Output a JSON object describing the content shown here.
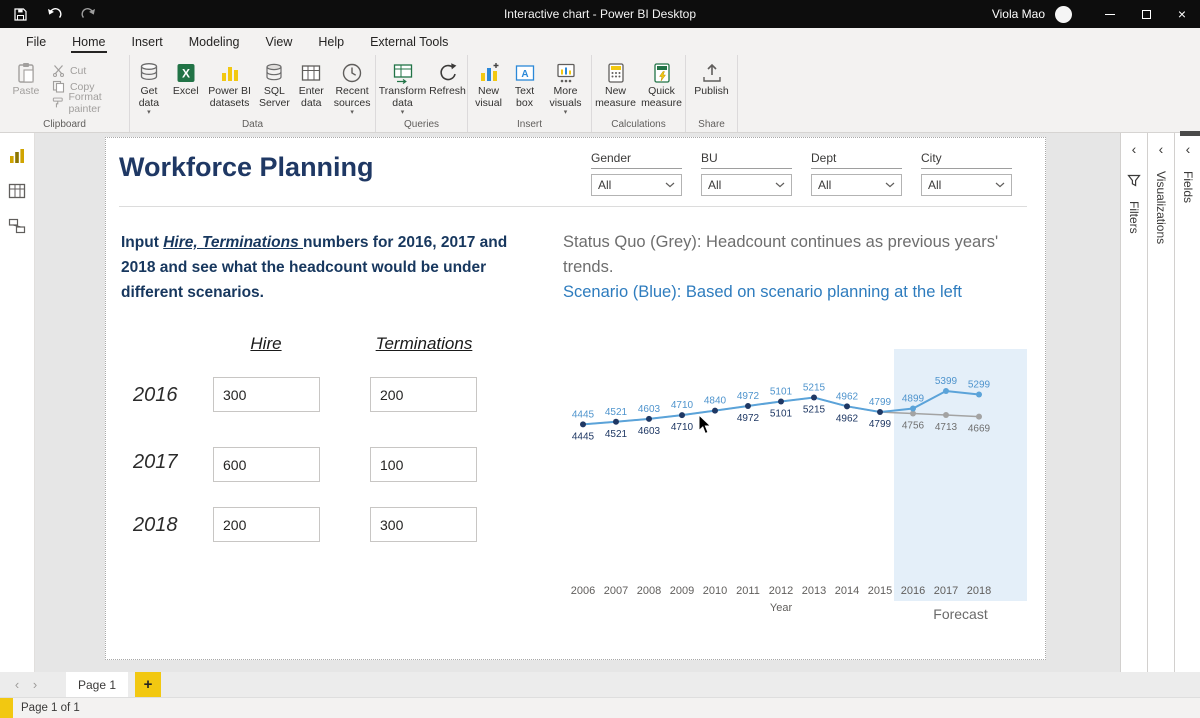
{
  "window": {
    "title": "Interactive chart - Power BI Desktop",
    "user_name": "Viola Mao"
  },
  "menu": [
    "File",
    "Home",
    "Insert",
    "Modeling",
    "View",
    "Help",
    "External Tools"
  ],
  "ribbon": {
    "groups": {
      "clipboard": "Clipboard",
      "data": "Data",
      "queries": "Queries",
      "insert": "Insert",
      "calculations": "Calculations",
      "share": "Share"
    },
    "buttons": {
      "paste": "Paste",
      "cut": "Cut",
      "copy": "Copy",
      "format_painter": "Format painter",
      "get_data": "Get data",
      "excel": "Excel",
      "power_bi_datasets": "Power BI datasets",
      "sql_server": "SQL Server",
      "enter_data": "Enter data",
      "recent_sources": "Recent sources",
      "transform_data": "Transform data",
      "refresh": "Refresh",
      "new_visual": "New visual",
      "text_box": "Text box",
      "more_visuals": "More visuals",
      "new_measure": "New measure",
      "quick_measure": "Quick measure",
      "publish": "Publish"
    }
  },
  "report": {
    "title": "Workforce Planning",
    "slicers": [
      {
        "label": "Gender",
        "value": "All"
      },
      {
        "label": "BU",
        "value": "All"
      },
      {
        "label": "Dept",
        "value": "All"
      },
      {
        "label": "City",
        "value": "All"
      }
    ],
    "instruction": {
      "pre": "Input ",
      "emphasized": "Hire, Terminations ",
      "post": "numbers for 2016, 2017 and 2018 and see what the headcount would be under different scenarios."
    },
    "legend_grey": "Status Quo (Grey): Headcount continues as previous years' trends.",
    "legend_blue": "Scenario (Blue): Based on scenario planning at the left",
    "input_table": {
      "hire_header": "Hire",
      "terminations_header": "Terminations",
      "rows": [
        {
          "year": "2016",
          "hire": "300",
          "terminations": "200"
        },
        {
          "year": "2017",
          "hire": "600",
          "terminations": "100"
        },
        {
          "year": "2018",
          "hire": "200",
          "terminations": "300"
        }
      ]
    }
  },
  "chart_data": {
    "type": "line",
    "x": [
      2006,
      2007,
      2008,
      2009,
      2010,
      2011,
      2012,
      2013,
      2014,
      2015,
      2016,
      2017,
      2018
    ],
    "xlabel": "Year",
    "series": [
      {
        "name": "Scenario",
        "color": "#5ba3d9",
        "label_color": "#4f94cd",
        "values": [
          4445,
          4521,
          4603,
          4710,
          4840,
          4972,
          5101,
          5215,
          4962,
          4799,
          4899,
          5399,
          5299
        ]
      },
      {
        "name": "Status Quo",
        "color": "#a3a3a3",
        "label_color": "#1f3864",
        "forecast_label_color": "#6f6f6f",
        "values": [
          4445,
          4521,
          4603,
          4710,
          4840,
          4972,
          5101,
          5215,
          4962,
          4799,
          4756,
          4713,
          4669
        ],
        "hidden_label_indices": [
          4
        ]
      }
    ],
    "history_marker_color": "#1f3864",
    "forecast": {
      "label": "Forecast",
      "start_year": 2016,
      "end_year": 2018,
      "fill": "#e4eff9"
    },
    "axis_tick_color": "#605e5c",
    "grid": false,
    "legend_position": "none"
  },
  "panels": {
    "filters": "Filters",
    "visualizations": "Visualizations",
    "fields": "Fields"
  },
  "tabs": {
    "page": "Page 1",
    "add": "+"
  },
  "status": {
    "text": "Page 1 of 1"
  }
}
